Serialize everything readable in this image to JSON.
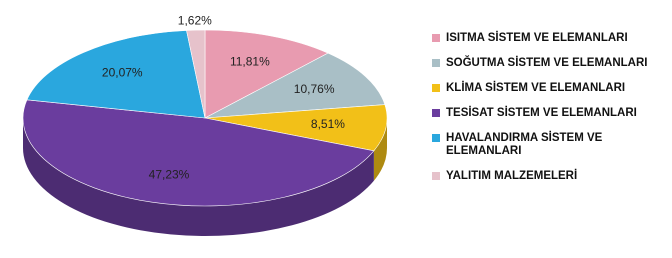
{
  "chart_data": {
    "type": "pie",
    "categories": [
      "ISITMA SİSTEM VE ELEMANLARI",
      "SOĞUTMA SİSTEM VE ELEMANLARI",
      "KLİMA SİSTEM VE ELEMANLARI",
      "TESİSAT SİSTEM VE ELEMANLARI",
      "HAVALANDIRMA SİSTEM VE ELEMANLARI",
      "YALITIM MALZEMELERİ"
    ],
    "values": [
      11.81,
      10.76,
      8.51,
      47.23,
      20.07,
      1.62
    ],
    "value_labels": [
      "11,81%",
      "10,76%",
      "8,51%",
      "47,23%",
      "20,07%",
      "1,62%"
    ],
    "colors": [
      "#e89bb0",
      "#a9bfc6",
      "#f2c018",
      "#6a3d9e",
      "#2aa7de",
      "#e6c2cb"
    ]
  }
}
